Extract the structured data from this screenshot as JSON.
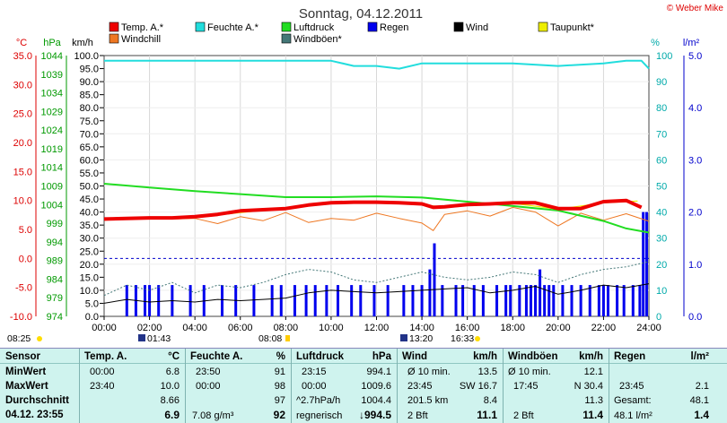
{
  "chart_data": {
    "type": "line",
    "title": "Sonntag, 04.12.2011",
    "copyright": "© Weber Mike",
    "axis_headers": {
      "temp": "°C",
      "pressure": "hPa",
      "wind": "km/h",
      "humidity": "%",
      "rain": "l/m²"
    },
    "temp_axis": {
      "ticks": [
        "35.0",
        "30.0",
        "25.0",
        "20.0",
        "15.0",
        "10.0",
        "5.0",
        "0.0",
        "-5.0",
        "-10.0"
      ],
      "ylim": [
        -10,
        35
      ],
      "color": "#dd0000"
    },
    "pressure_axis": {
      "ticks": [
        "1044",
        "1039",
        "1034",
        "1029",
        "1024",
        "1019",
        "1014",
        "1009",
        "1004",
        "999",
        "994",
        "989",
        "984",
        "979",
        "974"
      ],
      "ylim": [
        974,
        1044
      ],
      "color": "#009900"
    },
    "wind_axis": {
      "ticks": [
        "100.0",
        "95.0",
        "90.0",
        "85.0",
        "80.0",
        "75.0",
        "70.0",
        "65.0",
        "60.0",
        "55.0",
        "50.0",
        "45.0",
        "40.0",
        "35.0",
        "30.0",
        "25.0",
        "20.0",
        "15.0",
        "10.0",
        "5.0",
        "0.0"
      ],
      "ylim": [
        0,
        100
      ]
    },
    "humidity_axis": {
      "ticks": [
        "100",
        "90",
        "80",
        "70",
        "60",
        "50",
        "40",
        "30",
        "20",
        "10",
        "0"
      ],
      "ylim": [
        0,
        100
      ],
      "color": "#00cccc"
    },
    "rain_axis": {
      "ticks": [
        "5.0",
        "4.0",
        "3.0",
        "2.0",
        "1.0",
        "0.0"
      ],
      "ylim": [
        0,
        5
      ],
      "color": "#0000cc"
    },
    "x_ticks": [
      "00:00",
      "02:00",
      "04:00",
      "06:00",
      "08:00",
      "10:00",
      "12:00",
      "14:00",
      "16:00",
      "18:00",
      "20:00",
      "22:00",
      "24:00"
    ],
    "xlim": [
      0,
      24
    ],
    "legend": [
      {
        "label": "Temp. A.*",
        "color": "#ee0000"
      },
      {
        "label": "Feuchte A.*",
        "color": "#22dddd"
      },
      {
        "label": "Luftdruck",
        "color": "#22dd22"
      },
      {
        "label": "Regen",
        "color": "#0000ee"
      },
      {
        "label": "Wind",
        "color": "#000000"
      },
      {
        "label": "Taupunkt*",
        "color": "#eeee00"
      },
      {
        "label": "Windchill",
        "color": "#ee7722"
      },
      {
        "label": "Windböen*",
        "color": "#447777"
      }
    ],
    "series": [
      {
        "name": "Temp. A.*",
        "axis": "temp",
        "color": "#ee0000",
        "x": [
          0,
          1,
          2,
          3,
          4,
          5,
          6,
          7,
          8,
          9,
          10,
          11,
          12,
          13,
          14,
          14.5,
          15,
          16,
          17,
          18,
          19,
          20,
          21,
          22,
          23,
          23.67
        ],
        "y": [
          6.8,
          6.9,
          7.0,
          7.0,
          7.2,
          7.6,
          8.2,
          8.4,
          8.6,
          9.2,
          9.6,
          9.7,
          9.7,
          9.6,
          9.4,
          8.8,
          8.9,
          9.3,
          9.4,
          9.6,
          9.6,
          8.6,
          8.6,
          9.8,
          10.0,
          8.8
        ]
      },
      {
        "name": "Taupunkt*",
        "axis": "temp",
        "color": "#eeee00",
        "x": [
          0,
          4,
          8,
          10,
          12,
          14,
          15,
          16,
          18,
          20,
          22,
          23.5
        ],
        "y": [
          6.9,
          7.1,
          8.7,
          9.6,
          9.6,
          9.3,
          8.8,
          9.2,
          9.5,
          8.5,
          9.6,
          9.9
        ]
      },
      {
        "name": "Luftdruck",
        "axis": "pressure",
        "color": "#22dd22",
        "x": [
          0,
          2,
          4,
          6,
          8,
          10,
          12,
          14,
          16,
          18,
          20,
          22,
          23,
          24
        ],
        "y": [
          1009.6,
          1008.6,
          1007.6,
          1006.8,
          1006.0,
          1006.0,
          1006.2,
          1005.9,
          1004.8,
          1003.6,
          1002.4,
          999.6,
          997.6,
          996.5
        ]
      },
      {
        "name": "Feuchte A.*",
        "axis": "humidity",
        "color": "#22dddd",
        "x": [
          0,
          4,
          8,
          10,
          11,
          12,
          13,
          14,
          15,
          16,
          18,
          20,
          22,
          23,
          23.67,
          24
        ],
        "y": [
          98,
          98,
          98,
          98,
          96,
          96,
          95,
          97,
          97,
          97,
          97,
          96,
          97,
          98,
          98,
          95
        ]
      },
      {
        "name": "Windchill",
        "axis": "temp",
        "color": "#ee7722",
        "x": [
          0,
          1,
          2,
          3,
          4,
          5,
          6,
          7,
          8,
          9,
          10,
          11,
          12,
          13,
          14,
          14.5,
          15,
          16,
          17,
          18,
          19,
          20,
          21,
          22,
          23,
          24
        ],
        "y": [
          6.6,
          6.8,
          6.9,
          6.8,
          6.9,
          6.0,
          7.2,
          6.5,
          7.9,
          6.2,
          6.9,
          6.6,
          7.8,
          6.9,
          6.1,
          4.8,
          7.6,
          8.2,
          7.3,
          8.8,
          8.0,
          5.6,
          7.8,
          6.6,
          7.7,
          6.4
        ]
      },
      {
        "name": "Wind",
        "axis": "wind",
        "color": "#000000",
        "x": [
          0,
          1,
          2,
          3,
          4,
          5,
          6,
          7,
          8,
          9,
          10,
          11,
          12,
          13,
          14,
          15,
          16,
          17,
          18,
          19,
          20,
          21,
          22,
          23,
          24
        ],
        "y": [
          5.0,
          6.5,
          5.5,
          6.0,
          5.5,
          6.5,
          6.0,
          6.5,
          7.0,
          9.0,
          10.0,
          9.5,
          9.0,
          9.5,
          10.0,
          10.5,
          11.0,
          9.0,
          10.0,
          11.5,
          8.5,
          10.0,
          12.0,
          11.0,
          12.5
        ]
      },
      {
        "name": "Windböen*",
        "axis": "wind",
        "color": "#447777",
        "x": [
          0,
          1,
          2,
          3,
          4,
          5,
          6,
          7,
          8,
          9,
          10,
          11,
          12,
          13,
          14,
          15,
          16,
          17,
          18,
          19,
          20,
          21,
          22,
          23,
          24
        ],
        "y": [
          8,
          12,
          10,
          13,
          9,
          12,
          11,
          13,
          16,
          18,
          17,
          14,
          13,
          15,
          17,
          15,
          14,
          15,
          17,
          16,
          13,
          16,
          18,
          19,
          21
        ]
      },
      {
        "name": "Regen",
        "axis": "rain",
        "color": "#0000ee",
        "type": "bar",
        "x": [
          1.0,
          1.4,
          1.8,
          2.0,
          2.4,
          3.0,
          3.8,
          4.4,
          5.2,
          5.8,
          6.6,
          7.4,
          7.8,
          8.4,
          8.9,
          9.3,
          9.8,
          10.3,
          10.9,
          11.3,
          11.9,
          12.5,
          13.2,
          13.6,
          14.0,
          14.35,
          14.55,
          14.9,
          15.5,
          15.8,
          16.3,
          16.7,
          17.3,
          17.7,
          17.9,
          18.3,
          18.6,
          18.8,
          19.0,
          19.2,
          19.4,
          19.6,
          19.8,
          20.2,
          20.6,
          21.0,
          21.4,
          21.8,
          22.0,
          22.2,
          22.6,
          22.9,
          23.3,
          23.6,
          23.75,
          23.9
        ],
        "values": [
          0.6,
          0.6,
          0.6,
          0.6,
          0.6,
          0.6,
          0.6,
          0.6,
          0.6,
          0.6,
          0.6,
          0.6,
          0.6,
          0.6,
          0.6,
          0.6,
          0.6,
          0.6,
          0.6,
          0.6,
          0.6,
          0.6,
          0.6,
          0.6,
          0.6,
          0.9,
          1.4,
          0.6,
          0.6,
          0.6,
          0.6,
          0.6,
          0.6,
          0.6,
          0.6,
          0.6,
          0.6,
          0.6,
          0.6,
          0.9,
          0.6,
          0.6,
          0.6,
          0.6,
          0.6,
          0.6,
          0.6,
          0.6,
          0.6,
          0.6,
          0.6,
          0.6,
          0.6,
          0.6,
          2.0,
          2.0
        ]
      }
    ],
    "reference_line_temp": 0.0,
    "markers_top": [
      "08:25",
      "08:08",
      "16:33"
    ],
    "markers_bottom": [
      "01:43",
      "13:20"
    ]
  },
  "table": {
    "rows": [
      "Sensor",
      "MinWert",
      "MaxWert",
      "Durchschnitt",
      "04.12. 23:55"
    ],
    "temp": {
      "header": "Temp. A.",
      "unit": "°C",
      "min_time": "00:00",
      "min": "6.8",
      "max_time": "23:40",
      "max": "10.0",
      "avg": "8.66",
      "current": "6.9"
    },
    "humidity": {
      "header": "Feuchte A.",
      "unit": "%",
      "min_time": "23:50",
      "min": "91",
      "max_time": "00:00",
      "max": "98",
      "avg": "97",
      "extra": "7.08 g/m³",
      "current": "92"
    },
    "pressure": {
      "header": "Luftdruck",
      "unit": "hPa",
      "min_time": "23:15",
      "min": "994.1",
      "max_time": "00:00",
      "max": "1009.6",
      "trend": "^2.7hPa/h",
      "avg": "1004.4",
      "forecast": "regnerisch",
      "current": "↓994.5"
    },
    "wind": {
      "header": "Wind",
      "unit": "km/h",
      "row1_label": "Ø 10 min.",
      "row1_val": "13.5",
      "row2_time": "23:45",
      "row2_dir": "SW 16.7",
      "row3_dist": "201.5 km",
      "row3_val": "8.4",
      "row4_label": "2 Bft",
      "current": "11.1"
    },
    "gusts": {
      "header": "Windböen",
      "unit": "km/h",
      "row1_label": "Ø 10 min.",
      "row1_val": "12.1",
      "row2_time": "17:45",
      "row2_dir": "N 30.4",
      "row3_val": "11.3",
      "row4_label": "2 Bft",
      "current": "11.4"
    },
    "rain": {
      "header": "Regen",
      "unit": "l/m²",
      "row2_time": "23:45",
      "row2_val": "2.1",
      "row3_label": "Gesamt:",
      "row3_val": "48.1",
      "row4_label": "48.1 l/m²",
      "current": "1.4"
    }
  }
}
